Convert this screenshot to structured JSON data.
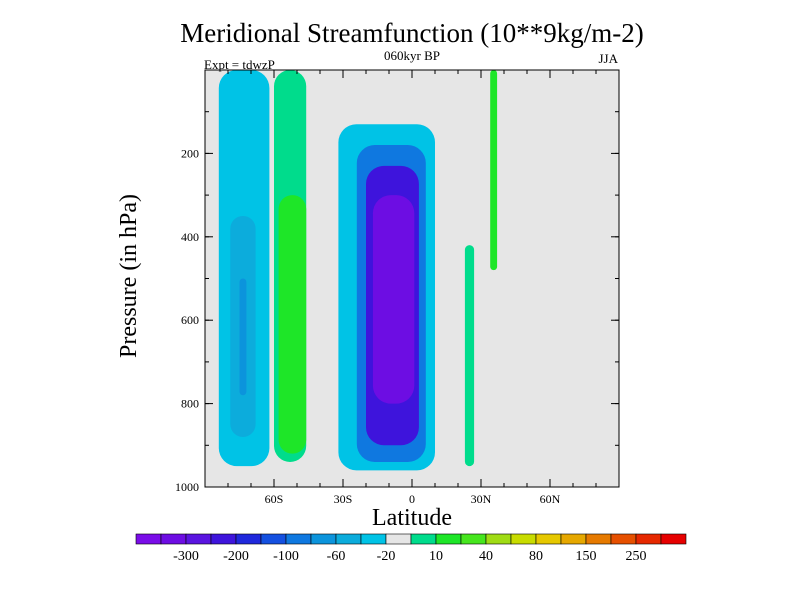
{
  "chart_data": {
    "type": "contour",
    "title": "Meridional Streamfunction (10**9kg/m-2)",
    "subtitle_center": "060kyr BP",
    "subtitle_left": "Expt = tdwzP",
    "subtitle_right": "JJA",
    "xlabel": "Latitude",
    "ylabel": "Pressure (in hPa)",
    "xlim": [
      -90,
      90
    ],
    "ylim": [
      1000,
      0
    ],
    "x_ticks": [
      {
        "value": -60,
        "label": "60S"
      },
      {
        "value": -30,
        "label": "30S"
      },
      {
        "value": 0,
        "label": "0"
      },
      {
        "value": 30,
        "label": "30N"
      },
      {
        "value": 60,
        "label": "60N"
      }
    ],
    "y_ticks": [
      {
        "value": 200,
        "label": "200"
      },
      {
        "value": 400,
        "label": "400"
      },
      {
        "value": 600,
        "label": "600"
      },
      {
        "value": 800,
        "label": "800"
      },
      {
        "value": 1000,
        "label": "1000"
      }
    ],
    "background_color": "#e6e6e6",
    "colorbar": {
      "colors": [
        "#7a0de8",
        "#6d0de3",
        "#5a14e0",
        "#3e14dc",
        "#1f28dc",
        "#1450e0",
        "#0f78e0",
        "#0c94dc",
        "#0cacdc",
        "#00c3e6",
        "#e6e6e6",
        "#00dc8c",
        "#1ee628",
        "#46e61e",
        "#a0dc14",
        "#c8dc00",
        "#e6c800",
        "#e6a800",
        "#e67a00",
        "#e65000",
        "#e62800",
        "#e60000"
      ],
      "labels": [
        {
          "after_index": 1,
          "text": "-300"
        },
        {
          "after_index": 3,
          "text": "-200"
        },
        {
          "after_index": 5,
          "text": "-100"
        },
        {
          "after_index": 7,
          "text": "-60"
        },
        {
          "after_index": 9,
          "text": "-20"
        },
        {
          "after_index": 11,
          "text": "10"
        },
        {
          "after_index": 13,
          "text": "40"
        },
        {
          "after_index": 15,
          "text": "80"
        },
        {
          "after_index": 17,
          "text": "150"
        },
        {
          "after_index": 19,
          "text": "250"
        }
      ]
    },
    "fields": [
      {
        "name": "southern-polar-cell",
        "color_index": 9,
        "lat": [
          -84,
          -62
        ],
        "p": [
          0,
          950
        ]
      },
      {
        "name": "southern-polar-cell-core",
        "color_index": 8,
        "lat": [
          -79,
          -68
        ],
        "p": [
          350,
          880
        ]
      },
      {
        "name": "southern-polar-cell-core-inner",
        "color_index": 7,
        "lat": [
          -75,
          -72
        ],
        "p": [
          500,
          780
        ]
      },
      {
        "name": "southern-ferrel-cell-outer",
        "color_index": 11,
        "lat": [
          -60,
          -46
        ],
        "p": [
          0,
          940
        ]
      },
      {
        "name": "southern-ferrel-cell",
        "color_index": 12,
        "lat": [
          -58,
          -46
        ],
        "p": [
          300,
          920
        ]
      },
      {
        "name": "hadley-cell-outer",
        "color_index": 9,
        "lat": [
          -32,
          10
        ],
        "p": [
          130,
          960
        ]
      },
      {
        "name": "hadley-cell",
        "color_index": 6,
        "lat": [
          -24,
          6
        ],
        "p": [
          180,
          940
        ]
      },
      {
        "name": "hadley-cell-core",
        "color_index": 3,
        "lat": [
          -20,
          3
        ],
        "p": [
          230,
          900
        ]
      },
      {
        "name": "hadley-cell-max",
        "color_index": 1,
        "lat": [
          -17,
          1
        ],
        "p": [
          300,
          800
        ]
      },
      {
        "name": "northern-cell-streak",
        "color_index": 11,
        "lat": [
          23,
          27
        ],
        "p": [
          420,
          950
        ]
      },
      {
        "name": "northern-upper-streak",
        "color_index": 12,
        "lat": [
          34,
          37
        ],
        "p": [
          0,
          480
        ]
      }
    ]
  }
}
